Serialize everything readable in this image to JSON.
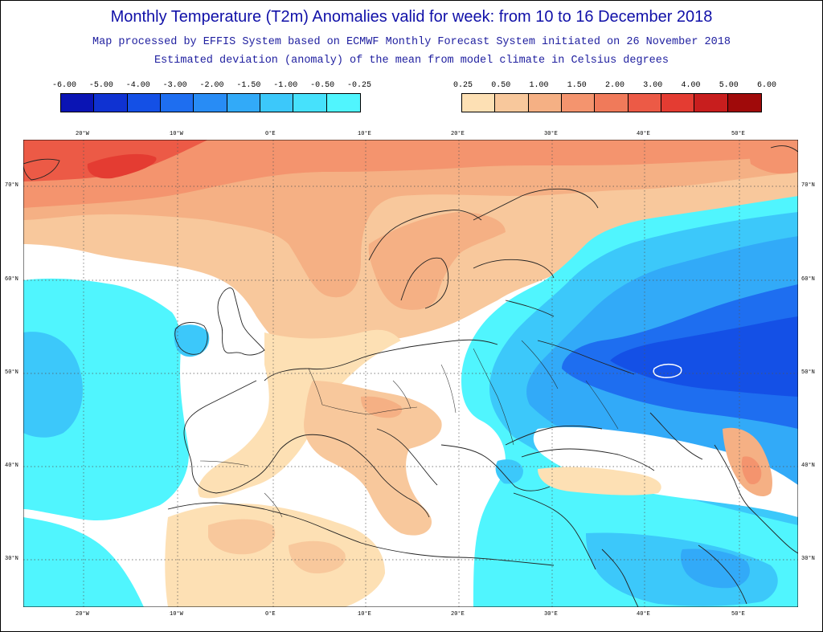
{
  "header": {
    "title": "Monthly Temperature (T2m) Anomalies valid for week: from 10 to 16 December 2018",
    "subtitle1": "Map processed by EFFIS System based on ECMWF Monthly Forecast System initiated on 26 November 2018",
    "subtitle2": "Estimated deviation (anomaly) of the mean from model climate in Celsius degrees"
  },
  "legend": {
    "negative": {
      "labels": [
        "-6.00",
        "-5.00",
        "-4.00",
        "-3.00",
        "-2.00",
        "-1.50",
        "-1.00",
        "-0.50",
        "-0.25"
      ],
      "colors": [
        "#0a14b4",
        "#0f32d2",
        "#1450e6",
        "#1e6ef0",
        "#288cf5",
        "#32aaf8",
        "#3cc8fa",
        "#46e1fc",
        "#50f5fe"
      ]
    },
    "positive": {
      "labels": [
        "0.25",
        "0.50",
        "1.00",
        "1.50",
        "2.00",
        "3.00",
        "4.00",
        "5.00",
        "6.00"
      ],
      "colors": [
        "#fde0b4",
        "#f8c89c",
        "#f5b084",
        "#f4946e",
        "#f07a5a",
        "#ec5a46",
        "#e43c32",
        "#c81e1e",
        "#a00a0a"
      ]
    }
  },
  "map": {
    "lon_labels": [
      "20°W",
      "10°W",
      "0°E",
      "10°E",
      "20°E",
      "30°E",
      "40°E",
      "50°E"
    ],
    "lat_labels": [
      "70°N",
      "60°N",
      "50°N",
      "40°N",
      "30°N"
    ]
  }
}
